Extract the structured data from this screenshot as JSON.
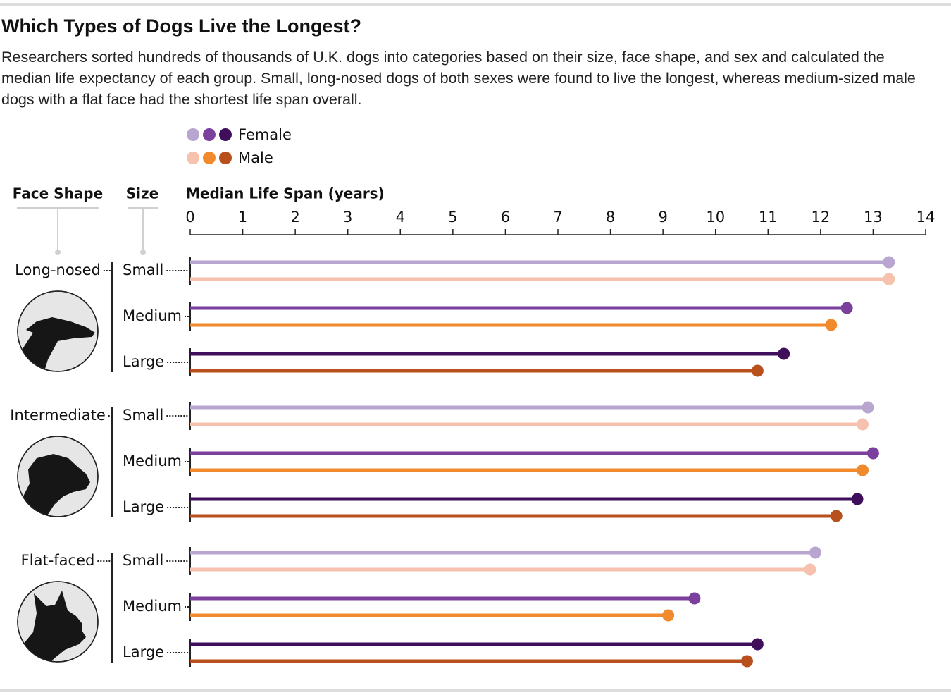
{
  "chart_data": {
    "type": "lollipop",
    "title": "Which Types of Dogs Live the Longest?",
    "subtitle": "Researchers sorted hundreds of thousands of U.K. dogs into categories based on their size, face shape, and sex and calculated the median life expectancy of each group. Small, long-nosed dogs of both sexes were found to live the longest, whereas medium-sized male dogs with a flat face had the shortest life span overall.",
    "face_shape_label": "Face Shape",
    "size_label": "Size",
    "x_label": "Median Life Span (years)",
    "face_shapes": [
      "Long-nosed",
      "Intermediate",
      "Flat-faced"
    ],
    "sizes": [
      "Small",
      "Medium",
      "Large"
    ],
    "xlim": [
      0,
      14
    ],
    "xticks": [
      0,
      1,
      2,
      3,
      4,
      5,
      6,
      7,
      8,
      9,
      10,
      11,
      12,
      13,
      14
    ],
    "series": [
      {
        "name": "Female",
        "colors": [
          "#b9a6d0",
          "#7b3f9e",
          "#3f0f5c"
        ],
        "values": [
          13.3,
          12.5,
          11.3,
          12.9,
          13.0,
          12.7,
          11.9,
          9.6,
          10.8
        ]
      },
      {
        "name": "Male",
        "colors": [
          "#f6c2ad",
          "#f08a2c",
          "#b8501e"
        ],
        "values": [
          13.3,
          12.2,
          10.8,
          12.8,
          12.8,
          12.3,
          11.8,
          9.1,
          10.6
        ]
      }
    ]
  }
}
